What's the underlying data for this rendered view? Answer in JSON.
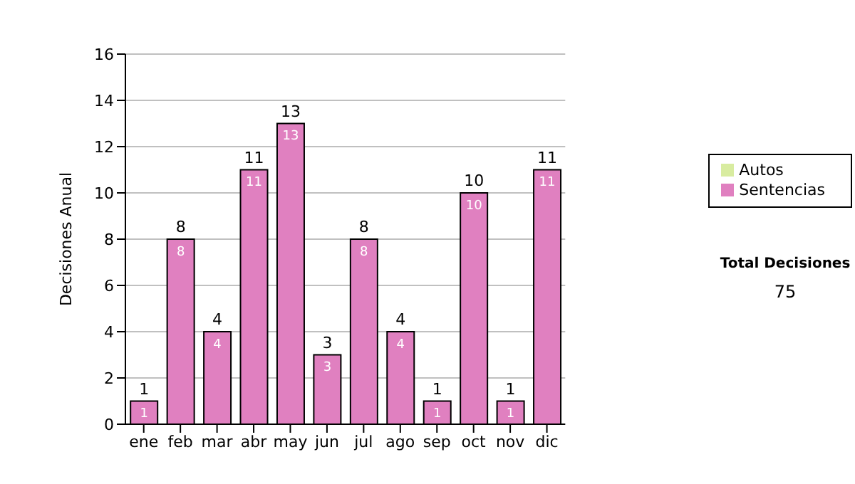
{
  "chart_data": {
    "type": "bar",
    "ylabel": "Decisiones Anual",
    "categories": [
      "ene",
      "feb",
      "mar",
      "abr",
      "may",
      "jun",
      "jul",
      "ago",
      "sep",
      "oct",
      "nov",
      "dic"
    ],
    "series": [
      {
        "name": "Sentencias",
        "color": "#e080c0",
        "values": [
          1,
          8,
          4,
          11,
          13,
          3,
          8,
          4,
          1,
          10,
          1,
          11
        ]
      },
      {
        "name": "Autos",
        "color": "#d8eca0",
        "values": [
          null,
          null,
          null,
          null,
          null,
          null,
          null,
          null,
          null,
          null,
          null,
          null
        ]
      }
    ],
    "stacked": true,
    "data_labels": true,
    "totals": [
      "1",
      "8",
      "4",
      "11",
      "13",
      "3",
      "8",
      "4",
      "1",
      "10",
      "1",
      "11"
    ],
    "ylim": [
      0,
      16
    ],
    "yticks": [
      0,
      2,
      4,
      6,
      8,
      10,
      12,
      14,
      16
    ],
    "grid": "y",
    "legend": "right",
    "annotations": [
      "Total Decisiones",
      "75"
    ]
  }
}
